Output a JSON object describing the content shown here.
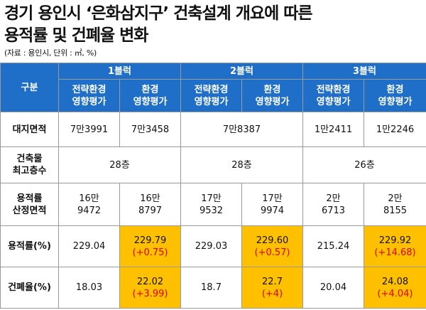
{
  "header": {
    "title_line1": "경기 용인시 ‘은화삼지구’ 건축설계 개요에 따른",
    "title_line2": "용적률 및 건폐율 변화",
    "source": "(자료 : 용인시, 단위 : ㎡, %)"
  },
  "table": {
    "corner_label": "구분",
    "blocks": [
      "1블럭",
      "2블럭",
      "3블럭"
    ],
    "subheaders": [
      [
        "전략환경",
        "영향평가"
      ],
      [
        "환경",
        "영향평가"
      ],
      [
        "전략환경",
        "영향평가"
      ],
      [
        "환경",
        "영향평가"
      ],
      [
        "전략환경",
        "영향평가"
      ],
      [
        "환경",
        "영향평가"
      ]
    ],
    "rows": {
      "land_area": {
        "label": "대지면적",
        "values": [
          "7만3991",
          "7만3458",
          "7만8387",
          "1만2411",
          "1만2246"
        ]
      },
      "max_floors": {
        "label": [
          "건축물",
          "최고층수"
        ],
        "values": [
          "28층",
          "28층",
          "26층"
        ]
      },
      "far_area": {
        "label": [
          "용적률",
          "산정면적"
        ],
        "values": [
          [
            "16만",
            "9472"
          ],
          [
            "16만",
            "8797"
          ],
          [
            "17만",
            "9532"
          ],
          [
            "17만",
            "9974"
          ],
          [
            "2만",
            "6713"
          ],
          [
            "2만",
            "8155"
          ]
        ]
      },
      "far": {
        "label": "용적률(%)",
        "values": [
          "229.04",
          "229.79",
          "229.03",
          "229.60",
          "215.24",
          "229.92"
        ],
        "diffs": [
          "(+0.75)",
          "(+0.57)",
          "(+14.68)"
        ]
      },
      "bcr": {
        "label": "건폐율(%)",
        "values": [
          "18.03",
          "22.02",
          "18.7",
          "22.7",
          "20.04",
          "24.08"
        ],
        "diffs": [
          "(+3.99)",
          "(+4)",
          "(+4.04)"
        ]
      }
    },
    "colors": {
      "header_blue": "#1f6fc8",
      "highlight": "#ffc000",
      "diff_red": "#e00000"
    }
  }
}
